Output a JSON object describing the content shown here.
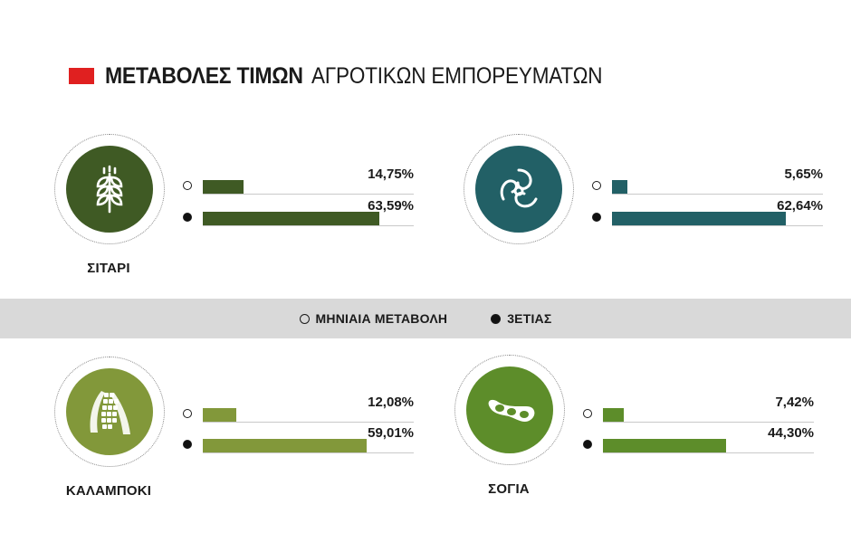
{
  "title": {
    "bold": "ΜΕΤΑΒΟΛΕΣ ΤΙΜΩΝ",
    "light": "ΑΓΡΟΤΙΚΩΝ ΕΜΠΟΡΕΥΜΑΤΩΝ"
  },
  "colors": {
    "accent": "#e02020",
    "wheat": "#3f5a24",
    "cotton": "#226066",
    "corn": "#82983a",
    "soy": "#5d8d2a",
    "gray_band": "#d9d9d9"
  },
  "legend": [
    {
      "label": "ΜΗΝΙΑΙΑ ΜΕΤΑΒΟΛΗ",
      "marker": "open-circle"
    },
    {
      "label": "3ΕΤΙΑΣ",
      "marker": "filled-circle"
    }
  ],
  "chart_data": {
    "type": "bar",
    "unit": "%",
    "value_max": 70,
    "panels": [
      {
        "label": "ΣΙΤΑΡΙ",
        "icon": "wheat-icon",
        "color": "#3f5a24",
        "series": [
          {
            "values": [
              14.75
            ],
            "display": "14,75%"
          },
          {
            "values": [
              63.59
            ],
            "display": "63,59%"
          }
        ]
      },
      {
        "label": "",
        "icon": "cotton-icon",
        "color": "#226066",
        "series": [
          {
            "values": [
              5.65
            ],
            "display": "5,65%"
          },
          {
            "values": [
              62.64
            ],
            "display": "62,64%"
          }
        ]
      },
      {
        "label": "ΚΑΛΑΜΠΟΚΙ",
        "icon": "corn-icon",
        "color": "#82983a",
        "series": [
          {
            "values": [
              12.08
            ],
            "display": "12,08%"
          },
          {
            "values": [
              59.01
            ],
            "display": "59,01%"
          }
        ]
      },
      {
        "label": "ΣΟΓΙΑ",
        "icon": "soybean-icon",
        "color": "#5d8d2a",
        "series": [
          {
            "values": [
              7.42
            ],
            "display": "7,42%"
          },
          {
            "values": [
              44.3
            ],
            "display": "44,30%"
          }
        ]
      }
    ]
  }
}
